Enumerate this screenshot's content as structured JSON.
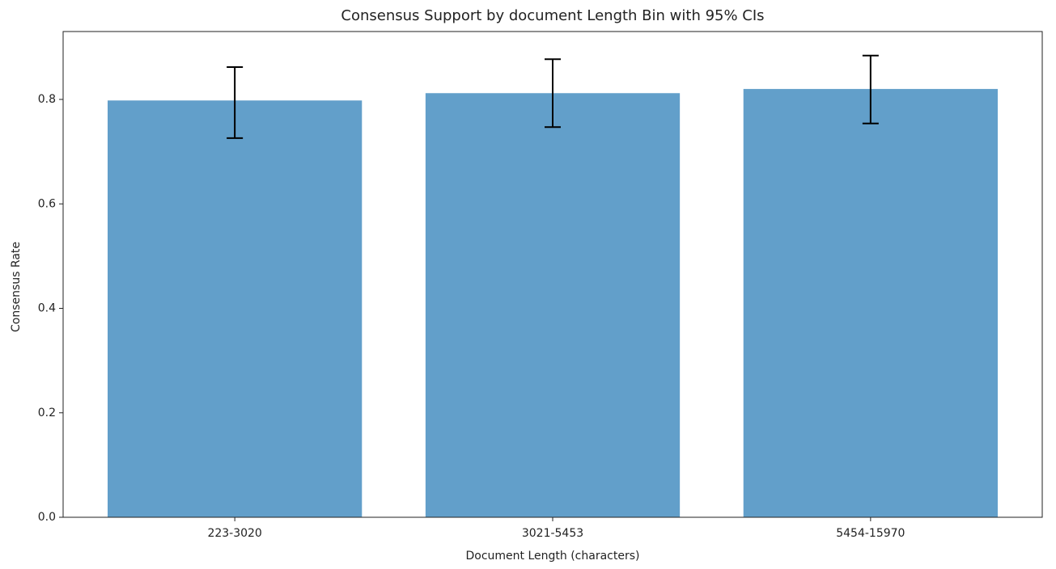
{
  "chart_data": {
    "type": "bar",
    "title": "Consensus Support by document Length Bin with 95% CIs",
    "x_label": "Document Length (characters)",
    "y_label": "Consensus Rate",
    "categories": [
      "223-3020",
      "3021-5453",
      "5454-15970"
    ],
    "values": [
      0.798,
      0.812,
      0.82
    ],
    "ci_lower": [
      0.726,
      0.747,
      0.754
    ],
    "ci_upper": [
      0.862,
      0.877,
      0.884
    ],
    "color": "#629fca",
    "error_color": "#000000",
    "ylim": [
      0,
      0.93
    ],
    "yticks": [
      {
        "value": 0,
        "label": "0.0"
      },
      0.2,
      0.4,
      0.6,
      0.8
    ],
    "grid": false
  }
}
